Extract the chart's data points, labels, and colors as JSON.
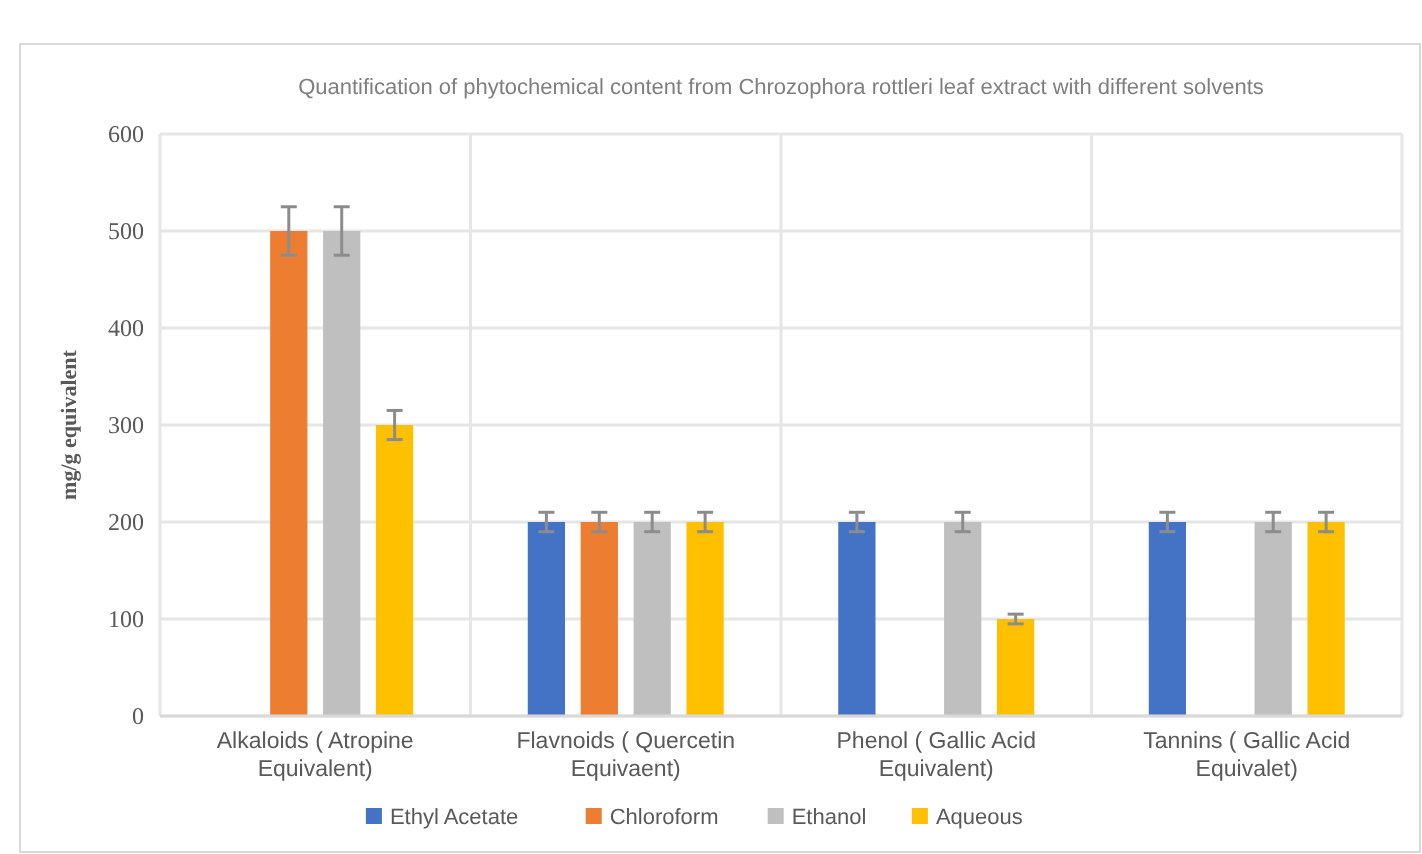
{
  "chart_data": {
    "type": "bar",
    "title": "Quantification of phytochemical content from Chrozophora rottleri leaf extract with different solvents",
    "ylabel": "mg/g equivalent",
    "categories": [
      "Alkaloids ( Atropine Equivalent)",
      "Flavnoids ( Quercetin Equivaent)",
      "Phenol ( Gallic Acid Equivalent)",
      "Tannins ( Gallic Acid Equivalet)"
    ],
    "series": [
      {
        "name": "Ethyl Acetate",
        "color": "#4472c4",
        "values": [
          null,
          200,
          200,
          200
        ],
        "errors": [
          null,
          10,
          10,
          10
        ]
      },
      {
        "name": "Chloroform",
        "color": "#ed7d31",
        "values": [
          500,
          200,
          null,
          null
        ],
        "errors": [
          25,
          10,
          null,
          null
        ]
      },
      {
        "name": "Ethanol",
        "color": "#bfbfbf",
        "values": [
          500,
          200,
          200,
          200
        ],
        "errors": [
          25,
          10,
          10,
          10
        ]
      },
      {
        "name": "Aqueous",
        "color": "#ffc000",
        "values": [
          300,
          200,
          100,
          200
        ],
        "errors": [
          15,
          10,
          5,
          10
        ]
      }
    ],
    "ylim": [
      0,
      600
    ],
    "yticks": [
      0,
      100,
      200,
      300,
      400,
      500,
      600
    ],
    "grid": true,
    "legend": "bottom"
  }
}
